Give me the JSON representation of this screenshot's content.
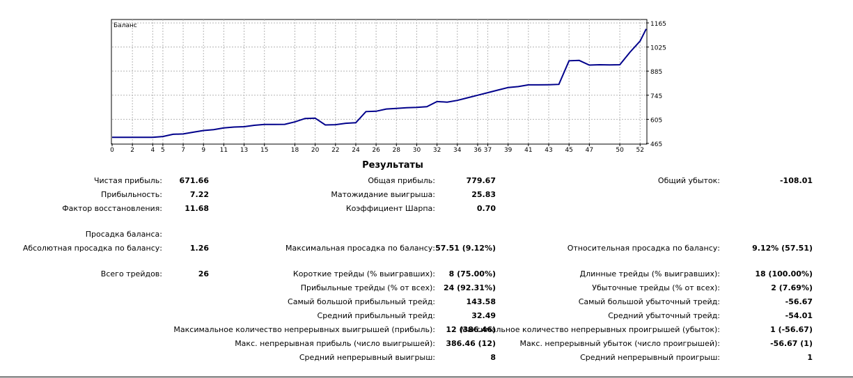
{
  "chart_data": {
    "type": "line",
    "title": "Баланс",
    "xlabel": "",
    "ylabel": "",
    "xlim": [
      0,
      52.6
    ],
    "ylim": [
      465,
      1185
    ],
    "x_ticks": [
      0,
      2,
      4,
      5,
      7,
      9,
      11,
      13,
      15,
      18,
      20,
      22,
      24,
      26,
      28,
      30,
      32,
      34,
      36,
      37,
      39,
      41,
      43,
      45,
      47,
      50,
      52
    ],
    "y_ticks": [
      465,
      605,
      745,
      885,
      1025,
      1165
    ],
    "grid": true,
    "x": [
      0,
      1,
      2,
      3,
      4,
      5,
      6,
      7,
      8,
      9,
      10,
      11,
      12,
      13,
      14,
      15,
      16,
      17,
      18,
      19,
      20,
      21,
      22,
      23,
      24,
      25,
      26,
      27,
      28,
      29,
      30,
      31,
      32,
      33,
      34,
      35,
      36,
      37,
      38,
      39,
      40,
      41,
      42,
      43,
      44,
      45,
      46,
      47,
      48,
      49,
      50,
      51,
      52,
      52.6
    ],
    "series": [
      {
        "values": [
          500,
          500,
          500,
          500,
          500,
          505,
          518,
          520,
          530,
          540,
          545,
          555,
          560,
          562,
          570,
          575,
          575,
          576,
          590,
          610,
          612,
          572,
          574,
          582,
          585,
          650,
          652,
          665,
          668,
          672,
          674,
          678,
          708,
          705,
          715,
          730,
          745,
          760,
          775,
          790,
          795,
          805,
          805,
          806,
          808,
          945,
          947,
          920,
          922,
          921,
          922,
          995,
          1060,
          1130
        ]
      }
    ]
  },
  "results": {
    "title": "Результаты",
    "net_profit_label": "Чистая прибыль:",
    "net_profit": "671.66",
    "gross_profit_label": "Общая прибыль:",
    "gross_profit": "779.67",
    "gross_loss_label": "Общий убыток:",
    "gross_loss": "-108.01",
    "profit_factor_label": "Прибыльность:",
    "profit_factor": "7.22",
    "expected_payoff_label": "Матожидание выигрыша:",
    "expected_payoff": "25.83",
    "recovery_factor_label": "Фактор восстановления:",
    "recovery_factor": "11.68",
    "sharpe_label": "Коэффициент Шарпа:",
    "sharpe": "0.70",
    "balance_drawdown_label": "Просадка баланса:",
    "abs_drawdown_label": "Абсолютная просадка по балансу:",
    "abs_drawdown": "1.26",
    "max_drawdown_label": "Максимальная просадка по балансу:",
    "max_drawdown": "57.51 (9.12%)",
    "rel_drawdown_label": "Относительная просадка по балансу:",
    "rel_drawdown": "9.12% (57.51)",
    "total_trades_label": "Всего трейдов:",
    "total_trades": "26",
    "short_trades_label": "Короткие трейды (% выигравших):",
    "short_trades": "8 (75.00%)",
    "long_trades_label": "Длинные трейды (% выигравших):",
    "long_trades": "18 (100.00%)",
    "profit_trades_label": "Прибыльные трейды (% от всех):",
    "profit_trades": "24 (92.31%)",
    "loss_trades_label": "Убыточные трейды (% от всех):",
    "loss_trades": "2 (7.69%)",
    "largest_profit_label": "Самый большой прибыльный трейд:",
    "largest_profit": "143.58",
    "largest_loss_label": "Самый большой убыточный трейд:",
    "largest_loss": "-56.67",
    "avg_profit_label": "Средний прибыльный трейд:",
    "avg_profit": "32.49",
    "avg_loss_label": "Средний убыточный трейд:",
    "avg_loss": "-54.01",
    "max_consec_wins_label": "Максимальное количество непрерывных выигрышей (прибыль):",
    "max_consec_wins": "12 (386.46)",
    "max_consec_losses_label": "Максимальное количество непрерывных проигрышей (убыток):",
    "max_consec_losses": "1 (-56.67)",
    "max_consec_profit_label": "Макс. непрерывная прибыль (число выигрышей):",
    "max_consec_profit": "386.46 (12)",
    "max_consec_loss_label": "Макс. непрерывный убыток (число проигрышей):",
    "max_consec_loss": "-56.67 (1)",
    "avg_consec_wins_label": "Средний непрерывный выигрыш:",
    "avg_consec_wins": "8",
    "avg_consec_losses_label": "Средний непрерывный проигрыш:",
    "avg_consec_losses": "1"
  }
}
